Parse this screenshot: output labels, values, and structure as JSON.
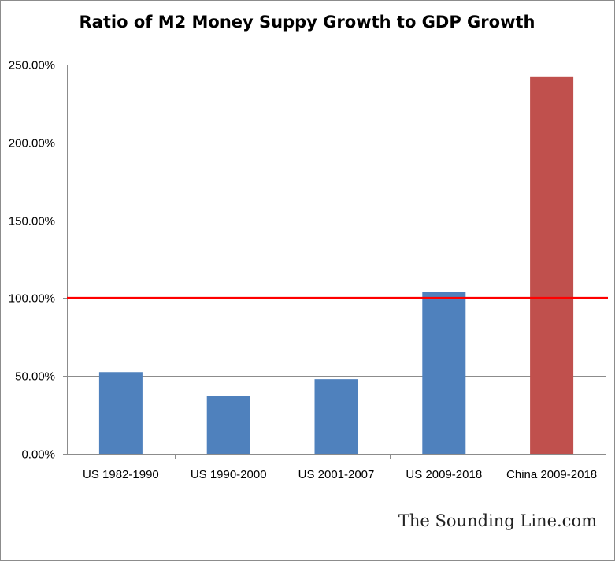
{
  "chart_data": {
    "type": "bar",
    "title": "Ratio of M2 Money Suppy Growth to GDP Growth",
    "xlabel": "",
    "ylabel": "",
    "categories": [
      "US 1982-1990",
      "US 1990-2000",
      "US 2001-2007",
      "US 2009-2018",
      "China 2009-2018"
    ],
    "values": [
      52.5,
      37.0,
      48.0,
      104.0,
      242.0
    ],
    "bar_colors": [
      "#4f81bd",
      "#4f81bd",
      "#4f81bd",
      "#4f81bd",
      "#c0504d"
    ],
    "ylim": [
      0,
      250
    ],
    "yticks": [
      0,
      50,
      100,
      150,
      200,
      250
    ],
    "ytick_labels": [
      "0.00%",
      "50.00%",
      "100.00%",
      "150.00%",
      "200.00%",
      "250.00%"
    ],
    "reference_line": {
      "value": 100,
      "color": "#ff0000"
    },
    "grid": true,
    "legend": "none"
  },
  "credit": "The Sounding Line.com",
  "colors": {
    "gridline": "#8c8c8c",
    "axis": "#8c8c8c"
  }
}
